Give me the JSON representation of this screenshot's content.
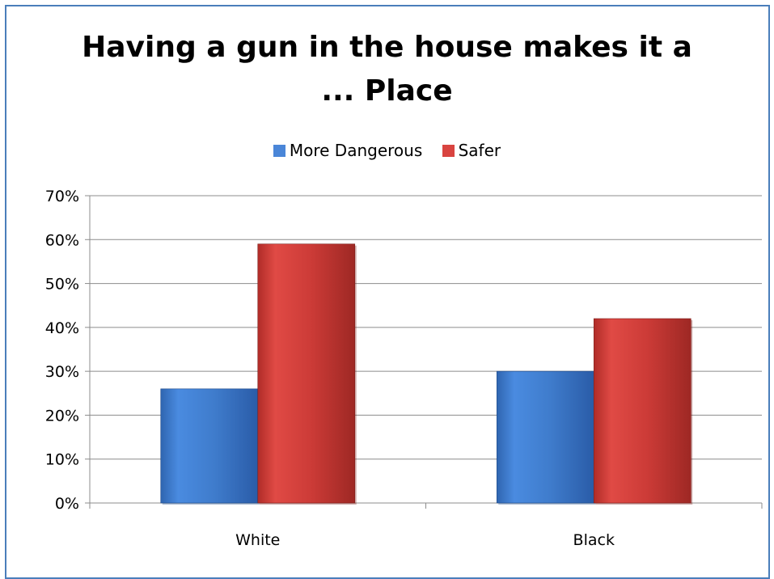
{
  "chart_data": {
    "type": "bar",
    "title": "Having a gun in the house makes it a ... Place",
    "title_lines": [
      "Having a gun in the house makes it a",
      "... Place"
    ],
    "categories": [
      "White",
      "Black"
    ],
    "series": [
      {
        "name": "More Dangerous",
        "values": [
          26,
          30
        ],
        "color": "#4a86d8"
      },
      {
        "name": "Safer",
        "values": [
          59,
          42
        ],
        "color": "#d94440"
      }
    ],
    "ylim": [
      0,
      70
    ],
    "yticks": [
      "0%",
      "10%",
      "20%",
      "30%",
      "40%",
      "50%",
      "60%",
      "70%"
    ],
    "ytick_values": [
      0,
      10,
      20,
      30,
      40,
      50,
      60,
      70
    ],
    "xlabel": "",
    "ylabel": "",
    "legend_position": "top",
    "grid": true,
    "colors": {
      "border": "#4a7ebb",
      "grid": "#8c8c8c"
    }
  }
}
